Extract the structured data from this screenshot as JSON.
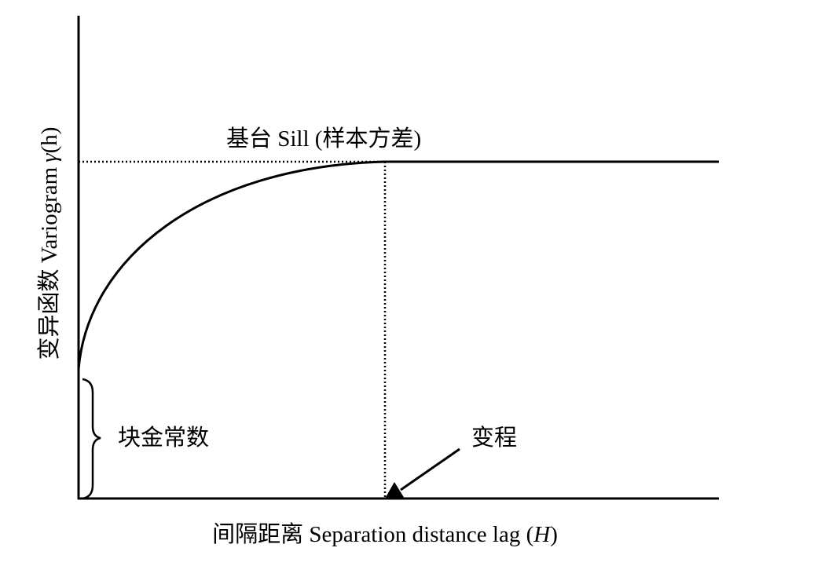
{
  "sill_label": "基台 Sill (样本方差)",
  "nugget_label": "块金常数",
  "range_label": "变程",
  "y_axis": {
    "parts": [
      "变异函数 Variogram",
      "γ",
      "(h)"
    ]
  },
  "x_axis": {
    "parts": [
      "间隔距离 Separation distance lag (",
      "H",
      ")"
    ]
  }
}
